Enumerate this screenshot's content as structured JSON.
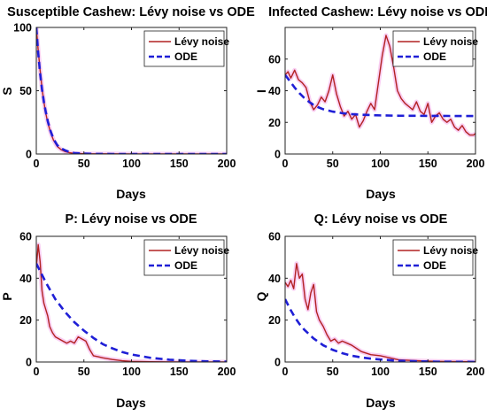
{
  "chart_data": [
    {
      "type": "line",
      "title": "Susceptible Cashew: Lévy noise vs ODE",
      "xlabel": "Days",
      "ylabel": "S",
      "xlim": [
        0,
        200
      ],
      "ylim": [
        0,
        100
      ],
      "xticks": [
        0,
        50,
        100,
        150,
        200
      ],
      "yticks": [
        0,
        50,
        100
      ],
      "grid": false,
      "legend_position": "top-right",
      "colors": {
        "levy": "#b22222",
        "ode": "#1f1fd6",
        "levy_halo": "#f4a6e8"
      },
      "series": [
        {
          "name": "Lévy noise",
          "style": "solid",
          "x": [
            0,
            2,
            4,
            6,
            8,
            10,
            12,
            15,
            18,
            22,
            26,
            30,
            35,
            40,
            50,
            60,
            80,
            100,
            150,
            200
          ],
          "y": [
            100,
            82,
            66,
            52,
            41,
            32,
            25,
            17,
            11,
            6,
            3.5,
            2,
            1,
            0.5,
            0.2,
            0.1,
            0.1,
            0,
            0,
            0
          ]
        },
        {
          "name": "ODE",
          "style": "dashed",
          "x": [
            0,
            2,
            4,
            6,
            8,
            10,
            12,
            15,
            18,
            22,
            26,
            30,
            35,
            40,
            50,
            60,
            80,
            100,
            150,
            200
          ],
          "y": [
            100,
            80,
            64,
            51,
            41,
            33,
            26,
            18,
            12,
            7,
            4.5,
            3,
            1.5,
            0.8,
            0.3,
            0.1,
            0,
            0,
            0,
            0
          ]
        }
      ]
    },
    {
      "type": "line",
      "title": "Infected Cashew: Lévy noise vs ODE",
      "xlabel": "Days",
      "ylabel": "I",
      "xlim": [
        0,
        200
      ],
      "ylim": [
        0,
        80
      ],
      "xticks": [
        0,
        50,
        100,
        150,
        200
      ],
      "yticks": [
        0,
        20,
        40,
        60
      ],
      "grid": false,
      "legend_position": "top-right",
      "colors": {
        "levy": "#b22222",
        "ode": "#1f1fd6",
        "levy_halo": "#f4a6e8"
      },
      "series": [
        {
          "name": "Lévy noise",
          "style": "solid",
          "x": [
            0,
            3,
            6,
            10,
            14,
            18,
            22,
            26,
            30,
            34,
            38,
            42,
            46,
            50,
            54,
            58,
            62,
            66,
            70,
            74,
            78,
            82,
            86,
            90,
            94,
            98,
            102,
            106,
            110,
            114,
            118,
            122,
            126,
            130,
            134,
            138,
            142,
            146,
            150,
            154,
            158,
            162,
            166,
            170,
            174,
            178,
            182,
            186,
            190,
            194,
            198,
            200
          ],
          "y": [
            50,
            52,
            48,
            53,
            47,
            45,
            42,
            33,
            28,
            31,
            36,
            33,
            40,
            50,
            38,
            30,
            24,
            27,
            22,
            25,
            17,
            21,
            27,
            32,
            28,
            45,
            62,
            75,
            68,
            55,
            40,
            35,
            32,
            30,
            28,
            33,
            27,
            25,
            32,
            20,
            24,
            26,
            22,
            20,
            22,
            17,
            15,
            18,
            14,
            12,
            12,
            13
          ]
        },
        {
          "name": "ODE",
          "style": "dashed",
          "x": [
            0,
            5,
            10,
            15,
            20,
            25,
            30,
            35,
            40,
            50,
            60,
            70,
            80,
            100,
            120,
            150,
            200
          ],
          "y": [
            50,
            46,
            42,
            38.5,
            35.5,
            33,
            31,
            29.5,
            28.3,
            26.8,
            25.8,
            25.2,
            24.8,
            24.4,
            24.2,
            24.1,
            24
          ]
        }
      ]
    },
    {
      "type": "line",
      "title": "P: Lévy noise vs ODE",
      "xlabel": "Days",
      "ylabel": "P",
      "xlim": [
        0,
        200
      ],
      "ylim": [
        0,
        60
      ],
      "xticks": [
        0,
        50,
        100,
        150,
        200
      ],
      "yticks": [
        0,
        20,
        40,
        60
      ],
      "grid": false,
      "legend_position": "top-right",
      "colors": {
        "levy": "#b22222",
        "ode": "#1f1fd6",
        "levy_halo": "#f4a6e8"
      },
      "series": [
        {
          "name": "Lévy noise",
          "style": "solid",
          "x": [
            0,
            2,
            4,
            6,
            8,
            10,
            12,
            14,
            17,
            20,
            24,
            28,
            32,
            36,
            40,
            44,
            48,
            52,
            56,
            60,
            65,
            70,
            80,
            90,
            100,
            120,
            150,
            200
          ],
          "y": [
            45,
            56,
            48,
            34,
            28,
            25,
            22,
            17,
            14,
            12,
            11,
            10,
            9,
            10,
            9,
            12,
            11,
            10,
            6,
            3,
            2.5,
            2,
            1.2,
            0.6,
            0.3,
            0.1,
            0,
            0
          ]
        },
        {
          "name": "ODE",
          "style": "dashed",
          "x": [
            0,
            10,
            20,
            30,
            40,
            50,
            60,
            70,
            80,
            90,
            100,
            120,
            140,
            160,
            180,
            200
          ],
          "y": [
            47,
            38,
            30,
            24,
            19,
            15,
            11.5,
            8.5,
            6.5,
            4.8,
            3.6,
            2,
            1.1,
            0.6,
            0.3,
            0.2
          ]
        }
      ]
    },
    {
      "type": "line",
      "title": "Q: Lévy noise vs ODE",
      "xlabel": "Days",
      "ylabel": "Q",
      "xlim": [
        0,
        200
      ],
      "ylim": [
        0,
        60
      ],
      "xticks": [
        0,
        50,
        100,
        150,
        200
      ],
      "yticks": [
        0,
        20,
        40,
        60
      ],
      "grid": false,
      "legend_position": "top-right",
      "colors": {
        "levy": "#b22222",
        "ode": "#1f1fd6",
        "levy_halo": "#f4a6e8"
      },
      "series": [
        {
          "name": "Lévy noise",
          "style": "solid",
          "x": [
            0,
            3,
            6,
            9,
            12,
            15,
            18,
            21,
            24,
            27,
            30,
            33,
            36,
            40,
            44,
            48,
            52,
            56,
            60,
            65,
            70,
            75,
            80,
            90,
            100,
            110,
            120,
            140,
            160,
            200
          ],
          "y": [
            38,
            36,
            39,
            35,
            47,
            40,
            42,
            30,
            25,
            33,
            37,
            24,
            20,
            17,
            13,
            10,
            11,
            9,
            10,
            9,
            8,
            6.5,
            5,
            3.5,
            3,
            2,
            1,
            0.6,
            0.3,
            0.1
          ]
        },
        {
          "name": "ODE",
          "style": "dashed",
          "x": [
            0,
            5,
            10,
            15,
            20,
            30,
            40,
            50,
            60,
            70,
            80,
            90,
            100,
            120,
            140,
            160,
            200
          ],
          "y": [
            30,
            25.5,
            21.5,
            18.2,
            15.5,
            11.2,
            8,
            5.8,
            4.2,
            3,
            2.2,
            1.6,
            1.2,
            0.6,
            0.3,
            0.15,
            0.05
          ]
        }
      ]
    }
  ]
}
